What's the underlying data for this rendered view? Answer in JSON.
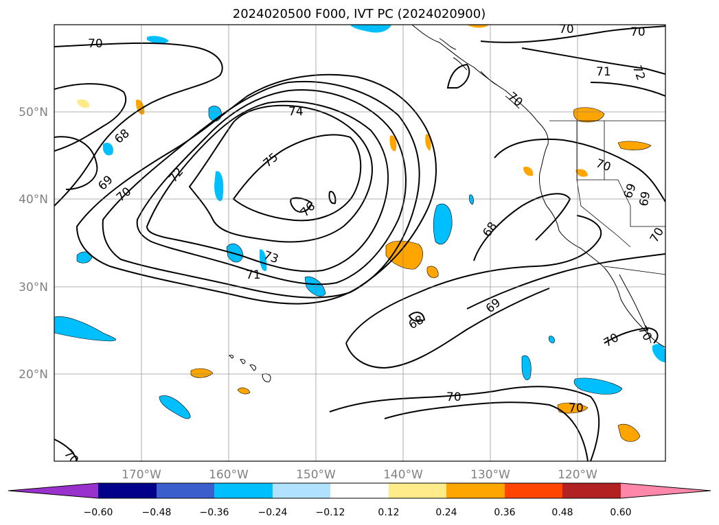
{
  "title": "2024020500 F000, IVT PC (2024020900)",
  "map": {
    "lon_ticks": [
      "170°W",
      "160°W",
      "150°W",
      "140°W",
      "130°W",
      "120°W"
    ],
    "lat_ticks": [
      "50°N",
      "40°N",
      "30°N",
      "20°N"
    ],
    "contour_labels": [
      "70",
      "70",
      "70",
      "71",
      "72",
      "68",
      "69",
      "70",
      "72",
      "74",
      "75",
      "76",
      "73",
      "71",
      "68",
      "68",
      "69",
      "70",
      "69",
      "69",
      "70",
      "70",
      "70",
      "70",
      "70",
      "70",
      "70"
    ]
  },
  "colorbar": {
    "ticks": [
      "−0.60",
      "−0.48",
      "−0.36",
      "−0.24",
      "−0.12",
      "0.12",
      "0.24",
      "0.36",
      "0.48",
      "0.60"
    ],
    "colors": [
      "#9932cc",
      "#00008b",
      "#3a5fcd",
      "#00bfff",
      "#b0e2ff",
      "#ffffff",
      "#ffeb8a",
      "#ffa500",
      "#ff4500",
      "#b22222",
      "#ff88aa"
    ]
  },
  "chart_data": {
    "type": "heatmap",
    "title": "2024020500 F000, IVT PC (2024020900)",
    "x_ticks": [
      "170°W",
      "160°W",
      "150°W",
      "140°W",
      "130°W",
      "120°W"
    ],
    "y_ticks": [
      "50°N",
      "40°N",
      "30°N",
      "20°N"
    ],
    "contour_values": [
      68,
      69,
      70,
      71,
      72,
      73,
      74,
      75,
      76
    ],
    "colorbar_levels": [
      -0.6,
      -0.48,
      -0.36,
      -0.24,
      -0.12,
      0.12,
      0.24,
      0.36,
      0.48,
      0.6
    ],
    "colorbar_extend": "both"
  }
}
